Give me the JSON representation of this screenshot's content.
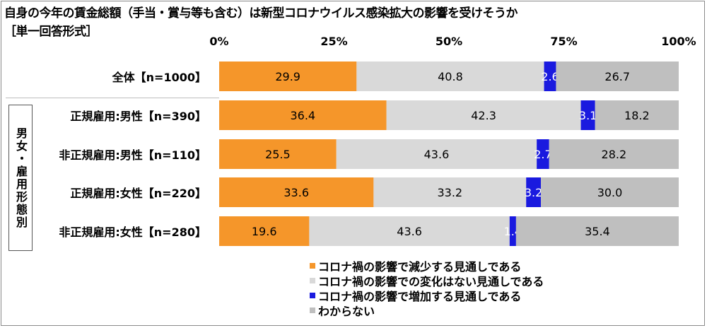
{
  "header": {
    "title": "自身の今年の賃金総額（手当・賞与等も含む）は新型コロナウイルス感染拡大の影響を受けそうか",
    "subtitle": "［単一回答形式］"
  },
  "group_label": "男女・雇用形態別",
  "legend": [
    {
      "label": "コロナ禍の影響で減少する見通しである",
      "color": "#f5962a"
    },
    {
      "label": "コロナ禍の影響での変化はない見通しである",
      "color": "#d9d9d9"
    },
    {
      "label": "コロナ禍の影響で増加する見通しである",
      "color": "#1a1adf"
    },
    {
      "label": "わからない",
      "color": "#bfbfbf"
    }
  ],
  "chart_data": {
    "type": "bar",
    "orientation": "horizontal",
    "stacked": true,
    "xlim": [
      0,
      100
    ],
    "xticks": [
      "0%",
      "25%",
      "50%",
      "75%",
      "100%"
    ],
    "categories": [
      "全体【n=1000】",
      "正規雇用:男性【n=390】",
      "非正規雇用:男性【n=110】",
      "正規雇用:女性【n=220】",
      "非正規雇用:女性【n=280】"
    ],
    "series": [
      {
        "name": "コロナ禍の影響で減少する見通しである",
        "color": "#f5962a",
        "values": [
          29.9,
          36.4,
          25.5,
          33.6,
          19.6
        ]
      },
      {
        "name": "コロナ禍の影響での変化はない見通しである",
        "color": "#d9d9d9",
        "values": [
          40.8,
          42.3,
          43.6,
          33.2,
          43.6
        ]
      },
      {
        "name": "コロナ禍の影響で増加する見通しである",
        "color": "#1a1adf",
        "values": [
          2.6,
          3.1,
          2.7,
          3.2,
          1.4
        ]
      },
      {
        "name": "わからない",
        "color": "#bfbfbf",
        "values": [
          26.7,
          18.2,
          28.2,
          30.0,
          35.4
        ]
      }
    ],
    "legend_position": "bottom",
    "grid": false
  }
}
